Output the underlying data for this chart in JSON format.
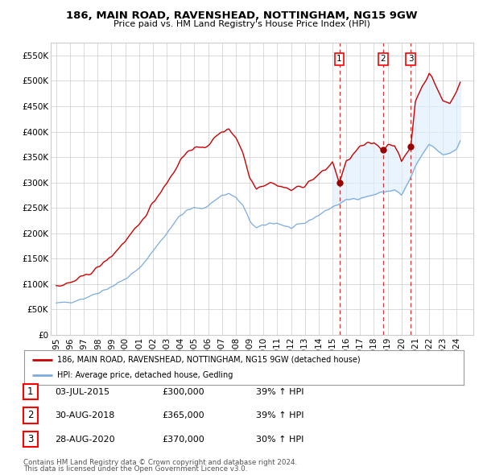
{
  "title": "186, MAIN ROAD, RAVENSHEAD, NOTTINGHAM, NG15 9GW",
  "subtitle": "Price paid vs. HM Land Registry's House Price Index (HPI)",
  "legend_line1": "186, MAIN ROAD, RAVENSHEAD, NOTTINGHAM, NG15 9GW (detached house)",
  "legend_line2": "HPI: Average price, detached house, Gedling",
  "footer1": "Contains HM Land Registry data © Crown copyright and database right 2024.",
  "footer2": "This data is licensed under the Open Government Licence v3.0.",
  "transactions": [
    {
      "num": 1,
      "date": "03-JUL-2015",
      "price": 300000,
      "hpi_change": "39% ↑ HPI",
      "x": 2015.5
    },
    {
      "num": 2,
      "date": "30-AUG-2018",
      "price": 365000,
      "hpi_change": "39% ↑ HPI",
      "x": 2018.67
    },
    {
      "num": 3,
      "date": "28-AUG-2020",
      "price": 370000,
      "hpi_change": "30% ↑ HPI",
      "x": 2020.67
    }
  ],
  "hpi_color": "#7aace0",
  "price_color": "#cc0000",
  "vline_color": "#cc0000",
  "marker_color": "#990000",
  "ylim": [
    0,
    575000
  ],
  "yticks": [
    0,
    50000,
    100000,
    150000,
    200000,
    250000,
    300000,
    350000,
    400000,
    450000,
    500000,
    550000
  ],
  "background_color": "#ffffff",
  "grid_color": "#cccccc",
  "shade_color": "#ddeeff",
  "hpi_anchors_x": [
    1995,
    1995.5,
    1996,
    1997,
    1997.5,
    1998,
    1999,
    2000,
    2001,
    2002,
    2003,
    2003.5,
    2004,
    2004.5,
    2005,
    2005.5,
    2006,
    2007,
    2007.5,
    2008,
    2008.5,
    2009,
    2009.5,
    2010,
    2010.5,
    2011,
    2011.5,
    2012,
    2012.5,
    2013,
    2013.5,
    2014,
    2014.5,
    2015,
    2015.5,
    2016,
    2016.5,
    2017,
    2017.5,
    2018,
    2018.5,
    2019,
    2019.5,
    2020,
    2020.5,
    2021,
    2021.5,
    2022,
    2022.5,
    2023,
    2023.5,
    2024,
    2024.25
  ],
  "hpi_anchors_y": [
    62000,
    63000,
    65000,
    72000,
    77000,
    83000,
    95000,
    110000,
    130000,
    165000,
    200000,
    220000,
    235000,
    245000,
    250000,
    248000,
    255000,
    275000,
    278000,
    270000,
    255000,
    225000,
    210000,
    215000,
    220000,
    220000,
    215000,
    210000,
    215000,
    220000,
    228000,
    236000,
    244000,
    252000,
    258000,
    265000,
    268000,
    270000,
    272000,
    276000,
    280000,
    283000,
    285000,
    275000,
    300000,
    330000,
    355000,
    375000,
    365000,
    355000,
    358000,
    368000,
    380000
  ],
  "price_anchors_x": [
    1995,
    1995.5,
    1996,
    1997,
    1997.5,
    1998,
    1999,
    2000,
    2001,
    2002,
    2003,
    2003.5,
    2004,
    2004.5,
    2005,
    2005.5,
    2006,
    2007,
    2007.5,
    2008,
    2008.5,
    2009,
    2009.5,
    2010,
    2010.5,
    2011,
    2011.5,
    2012,
    2012.5,
    2013,
    2013.5,
    2014,
    2014.5,
    2015,
    2015.5,
    2016,
    2016.5,
    2017,
    2017.5,
    2018,
    2018.67,
    2019,
    2019.5,
    2020,
    2020.67,
    2021,
    2021.5,
    2022,
    2022.5,
    2023,
    2023.5,
    2024,
    2024.25
  ],
  "price_anchors_y": [
    96000,
    98000,
    102000,
    115000,
    123000,
    132000,
    155000,
    185000,
    215000,
    260000,
    300000,
    320000,
    345000,
    360000,
    370000,
    365000,
    375000,
    400000,
    405000,
    390000,
    360000,
    310000,
    290000,
    295000,
    300000,
    295000,
    290000,
    285000,
    290000,
    295000,
    305000,
    315000,
    325000,
    340000,
    300000,
    340000,
    355000,
    370000,
    375000,
    378000,
    365000,
    375000,
    375000,
    340000,
    370000,
    460000,
    490000,
    515000,
    490000,
    460000,
    455000,
    480000,
    500000
  ]
}
